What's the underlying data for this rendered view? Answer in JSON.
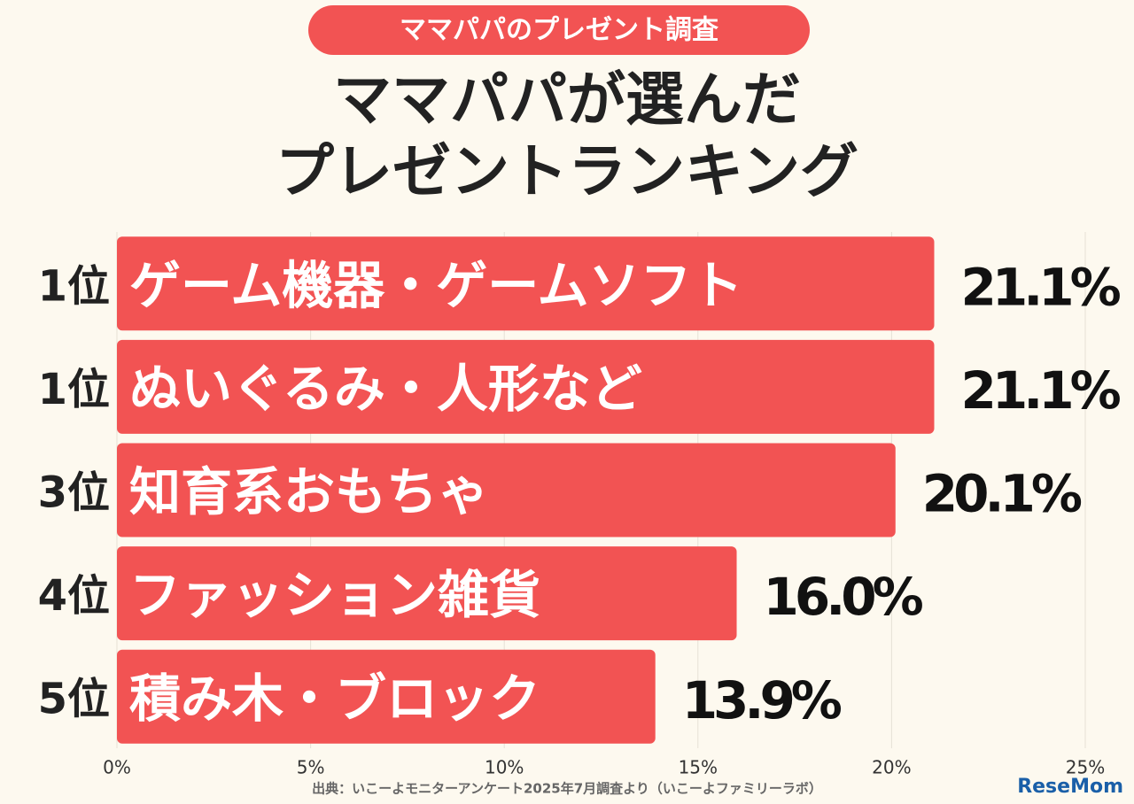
{
  "chart_data": {
    "type": "bar",
    "orientation": "horizontal",
    "badge": "ママパパのプレゼント調査",
    "title": [
      "ママパパが選んだ",
      "プレゼントランキング"
    ],
    "ranks": [
      "1位",
      "1位",
      "3位",
      "4位",
      "5位"
    ],
    "categories": [
      "ゲーム機器・ゲームソフト",
      "ぬいぐるみ・人形など",
      "知育系おもちゃ",
      "ファッション雑貨",
      "積み木・ブロック"
    ],
    "values": [
      21.1,
      21.1,
      20.1,
      16.0,
      13.9
    ],
    "value_labels": [
      "21.1%",
      "21.1%",
      "20.1%",
      "16.0%",
      "13.9%"
    ],
    "color": "#f25353",
    "xlim": [
      0,
      25
    ],
    "xticks": [
      {
        "value": 0,
        "label": "0%"
      },
      {
        "value": 5,
        "label": "5%"
      },
      {
        "value": 10,
        "label": "10%"
      },
      {
        "value": 15,
        "label": "15%"
      },
      {
        "value": 20,
        "label": "20%"
      },
      {
        "value": 25,
        "label": "25%"
      }
    ],
    "grid": true,
    "source": "出典：いこーよモニターアンケート2025年7月調査より（いこーよファミリーラボ）",
    "logo": "ReseMom"
  }
}
